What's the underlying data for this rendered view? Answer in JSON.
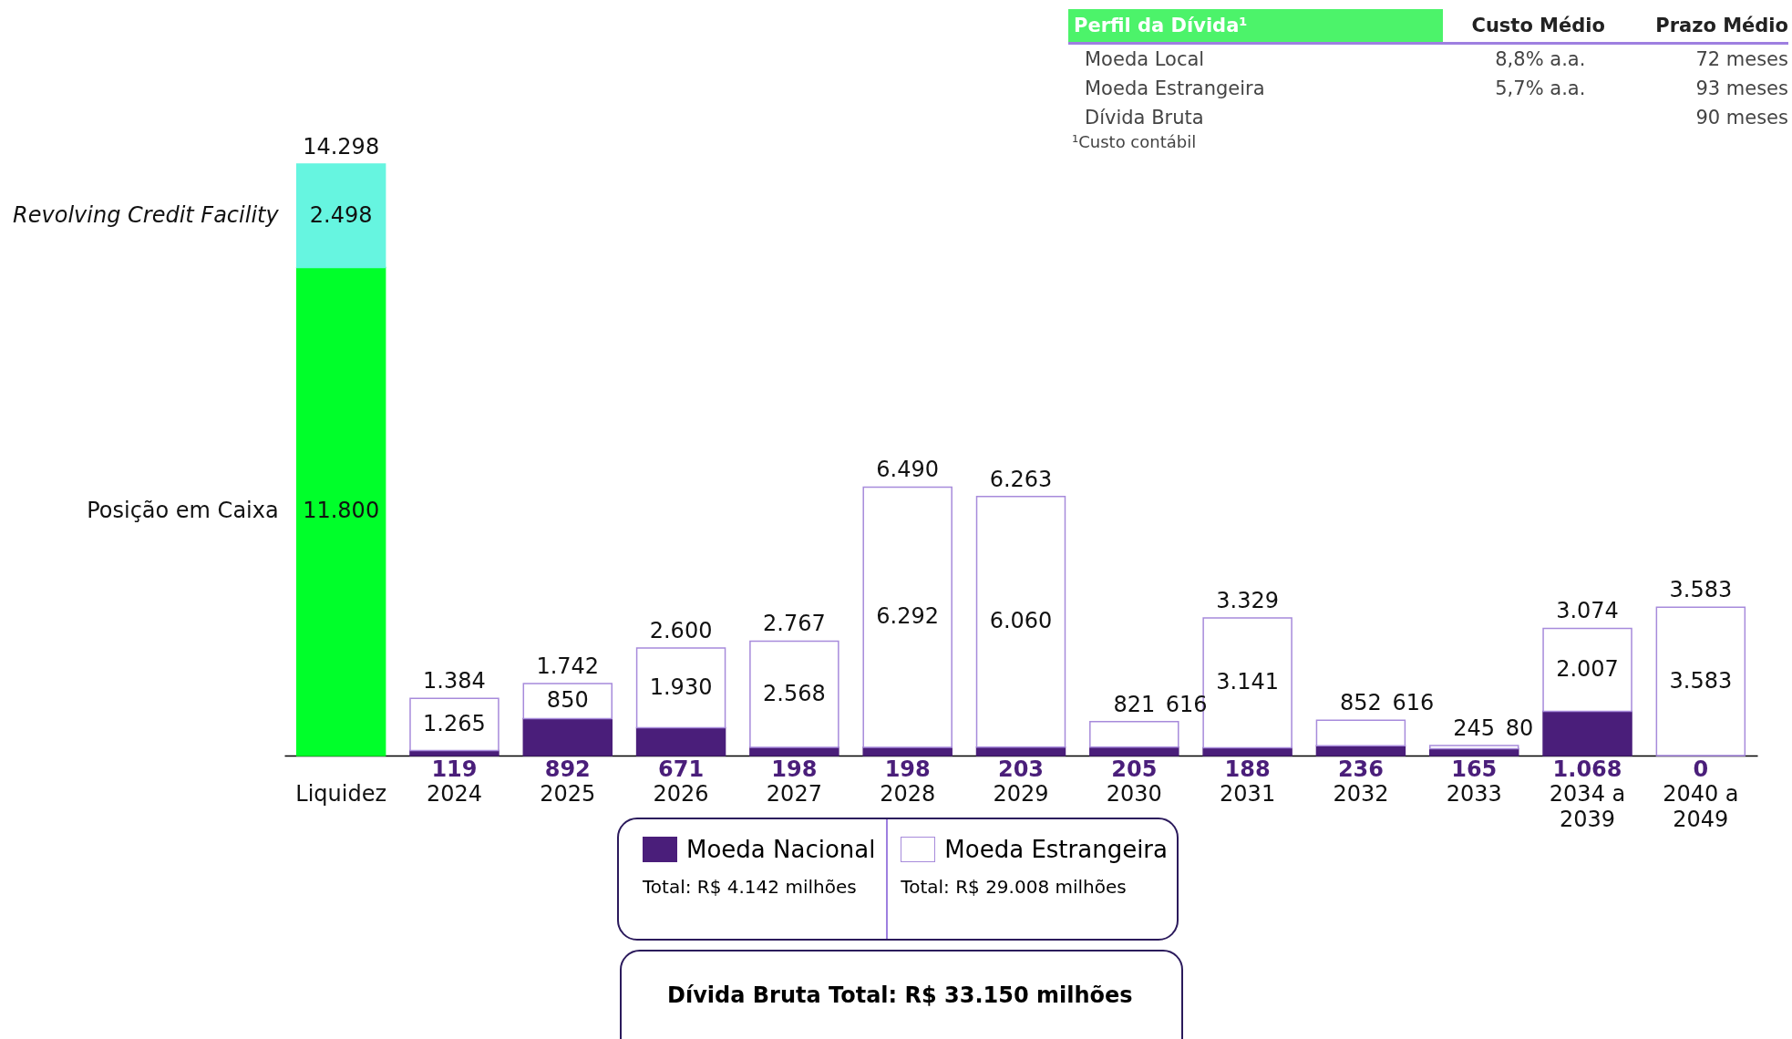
{
  "chart_data": {
    "type": "bar",
    "stacked": true,
    "categories": [
      "Liquidez",
      "2024",
      "2025",
      "2026",
      "2027",
      "2028",
      "2029",
      "2030",
      "2031",
      "2032",
      "2033",
      "2034 a 2039",
      "2040 a 2049"
    ],
    "series": [
      {
        "name": "Moeda Nacional",
        "color": "#4a1e7a",
        "values": [
          null,
          119,
          892,
          671,
          198,
          198,
          203,
          205,
          188,
          236,
          165,
          1068,
          0
        ],
        "value_labels": [
          null,
          "119",
          "892",
          "671",
          "198",
          "198",
          "203",
          "205",
          "188",
          "236",
          "165",
          "1.068",
          "0"
        ]
      },
      {
        "name": "Moeda Estrangeira",
        "color": "#ffffff",
        "values": [
          null,
          1265,
          850,
          1930,
          2568,
          6292,
          6060,
          616,
          3141,
          616,
          80,
          2007,
          3583
        ],
        "value_labels": [
          null,
          "1.265",
          "850",
          "1.930",
          "2.568",
          "6.292",
          "6.060",
          "616",
          "3.141",
          "616",
          "80",
          "2.007",
          "3.583"
        ]
      },
      {
        "name": "Posição em Caixa",
        "color": "#00ff2a",
        "values": [
          11800,
          null,
          null,
          null,
          null,
          null,
          null,
          null,
          null,
          null,
          null,
          null,
          null
        ],
        "value_labels": [
          "11.800",
          null,
          null,
          null,
          null,
          null,
          null,
          null,
          null,
          null,
          null,
          null,
          null
        ]
      },
      {
        "name": "Revolving Credit Facility",
        "color": "#66f5e0",
        "values": [
          2498,
          null,
          null,
          null,
          null,
          null,
          null,
          null,
          null,
          null,
          null,
          null,
          null
        ],
        "value_labels": [
          "2.498",
          null,
          null,
          null,
          null,
          null,
          null,
          null,
          null,
          null,
          null,
          null,
          null
        ]
      }
    ],
    "totals": [
      "14.298",
      "1.384",
      "1.742",
      "2.600",
      "2.767",
      "6.490",
      "6.263",
      "821",
      "3.329",
      "852",
      "245",
      "3.074",
      "3.583"
    ],
    "legend": "bottom",
    "annotations": [
      "Perfil da Dívida¹",
      "Custo Médio",
      "Prazo Médio",
      "Moeda Local",
      "8,8% a.a.",
      "72 meses",
      "Moeda Estrangeira",
      "5,7% a.a.",
      "93 meses",
      "Dívida Bruta",
      "90 meses",
      "¹Custo contábil",
      "Total: R$ 4.142 milhões",
      "Total: R$ 29.008 milhões",
      "Dívida Bruta Total: R$ 33.150 milhões"
    ]
  }
}
